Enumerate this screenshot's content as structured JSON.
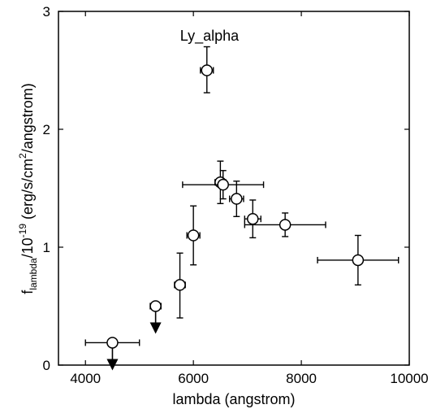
{
  "chart_data": {
    "type": "scatter",
    "xlim": [
      3500,
      10000
    ],
    "ylim": [
      0,
      3
    ],
    "xticks": [
      4000,
      6000,
      8000,
      10000
    ],
    "yticks": [
      0,
      1,
      2,
      3
    ],
    "xtick_labels": [
      "4000",
      "6000",
      "8000",
      "10000"
    ],
    "ytick_labels": [
      "0",
      "1",
      "2",
      "3"
    ],
    "xlabel": "lambda (angstrom)",
    "ylabel": {
      "base": "f",
      "base_sub": "lambda",
      "mid": "/10",
      "mid_sup": "-19",
      "unit_a": " (erg/s/cm",
      "unit_sup": "2",
      "unit_b": "/angstrom)"
    },
    "annotation": "Ly_alpha",
    "grid": false,
    "points": [
      {
        "x": 4500,
        "y": 0.19,
        "xerr": 500,
        "yerr": 0,
        "upper_limit": true
      },
      {
        "x": 5300,
        "y": 0.5,
        "xerr": 100,
        "yerr": 0,
        "upper_limit": true
      },
      {
        "x": 5750,
        "y": 0.68,
        "xerr": 100,
        "yerr_lo": 0.28,
        "yerr_hi": 0.27
      },
      {
        "x": 6000,
        "y": 1.1,
        "xerr": 120,
        "yerr_lo": 0.25,
        "yerr_hi": 0.25
      },
      {
        "x": 6250,
        "y": 2.5,
        "xerr": 120,
        "yerr_lo": 0.19,
        "yerr_hi": 0.2
      },
      {
        "x": 6500,
        "y": 1.55,
        "xerr": 100,
        "yerr_lo": 0.18,
        "yerr_hi": 0.18
      },
      {
        "x": 6550,
        "y": 1.53,
        "xerr_lo": 750,
        "xerr_hi": 750,
        "yerr_lo": 0.12,
        "yerr_hi": 0.12
      },
      {
        "x": 6800,
        "y": 1.41,
        "xerr": 130,
        "yerr_lo": 0.15,
        "yerr_hi": 0.15
      },
      {
        "x": 7100,
        "y": 1.24,
        "xerr": 150,
        "yerr_lo": 0.16,
        "yerr_hi": 0.16
      },
      {
        "x": 7700,
        "y": 1.19,
        "xerr_lo": 750,
        "xerr_hi": 750,
        "yerr_lo": 0.1,
        "yerr_hi": 0.1
      },
      {
        "x": 9050,
        "y": 0.89,
        "xerr": 750,
        "yerr_lo": 0.21,
        "yerr_hi": 0.21
      }
    ]
  }
}
